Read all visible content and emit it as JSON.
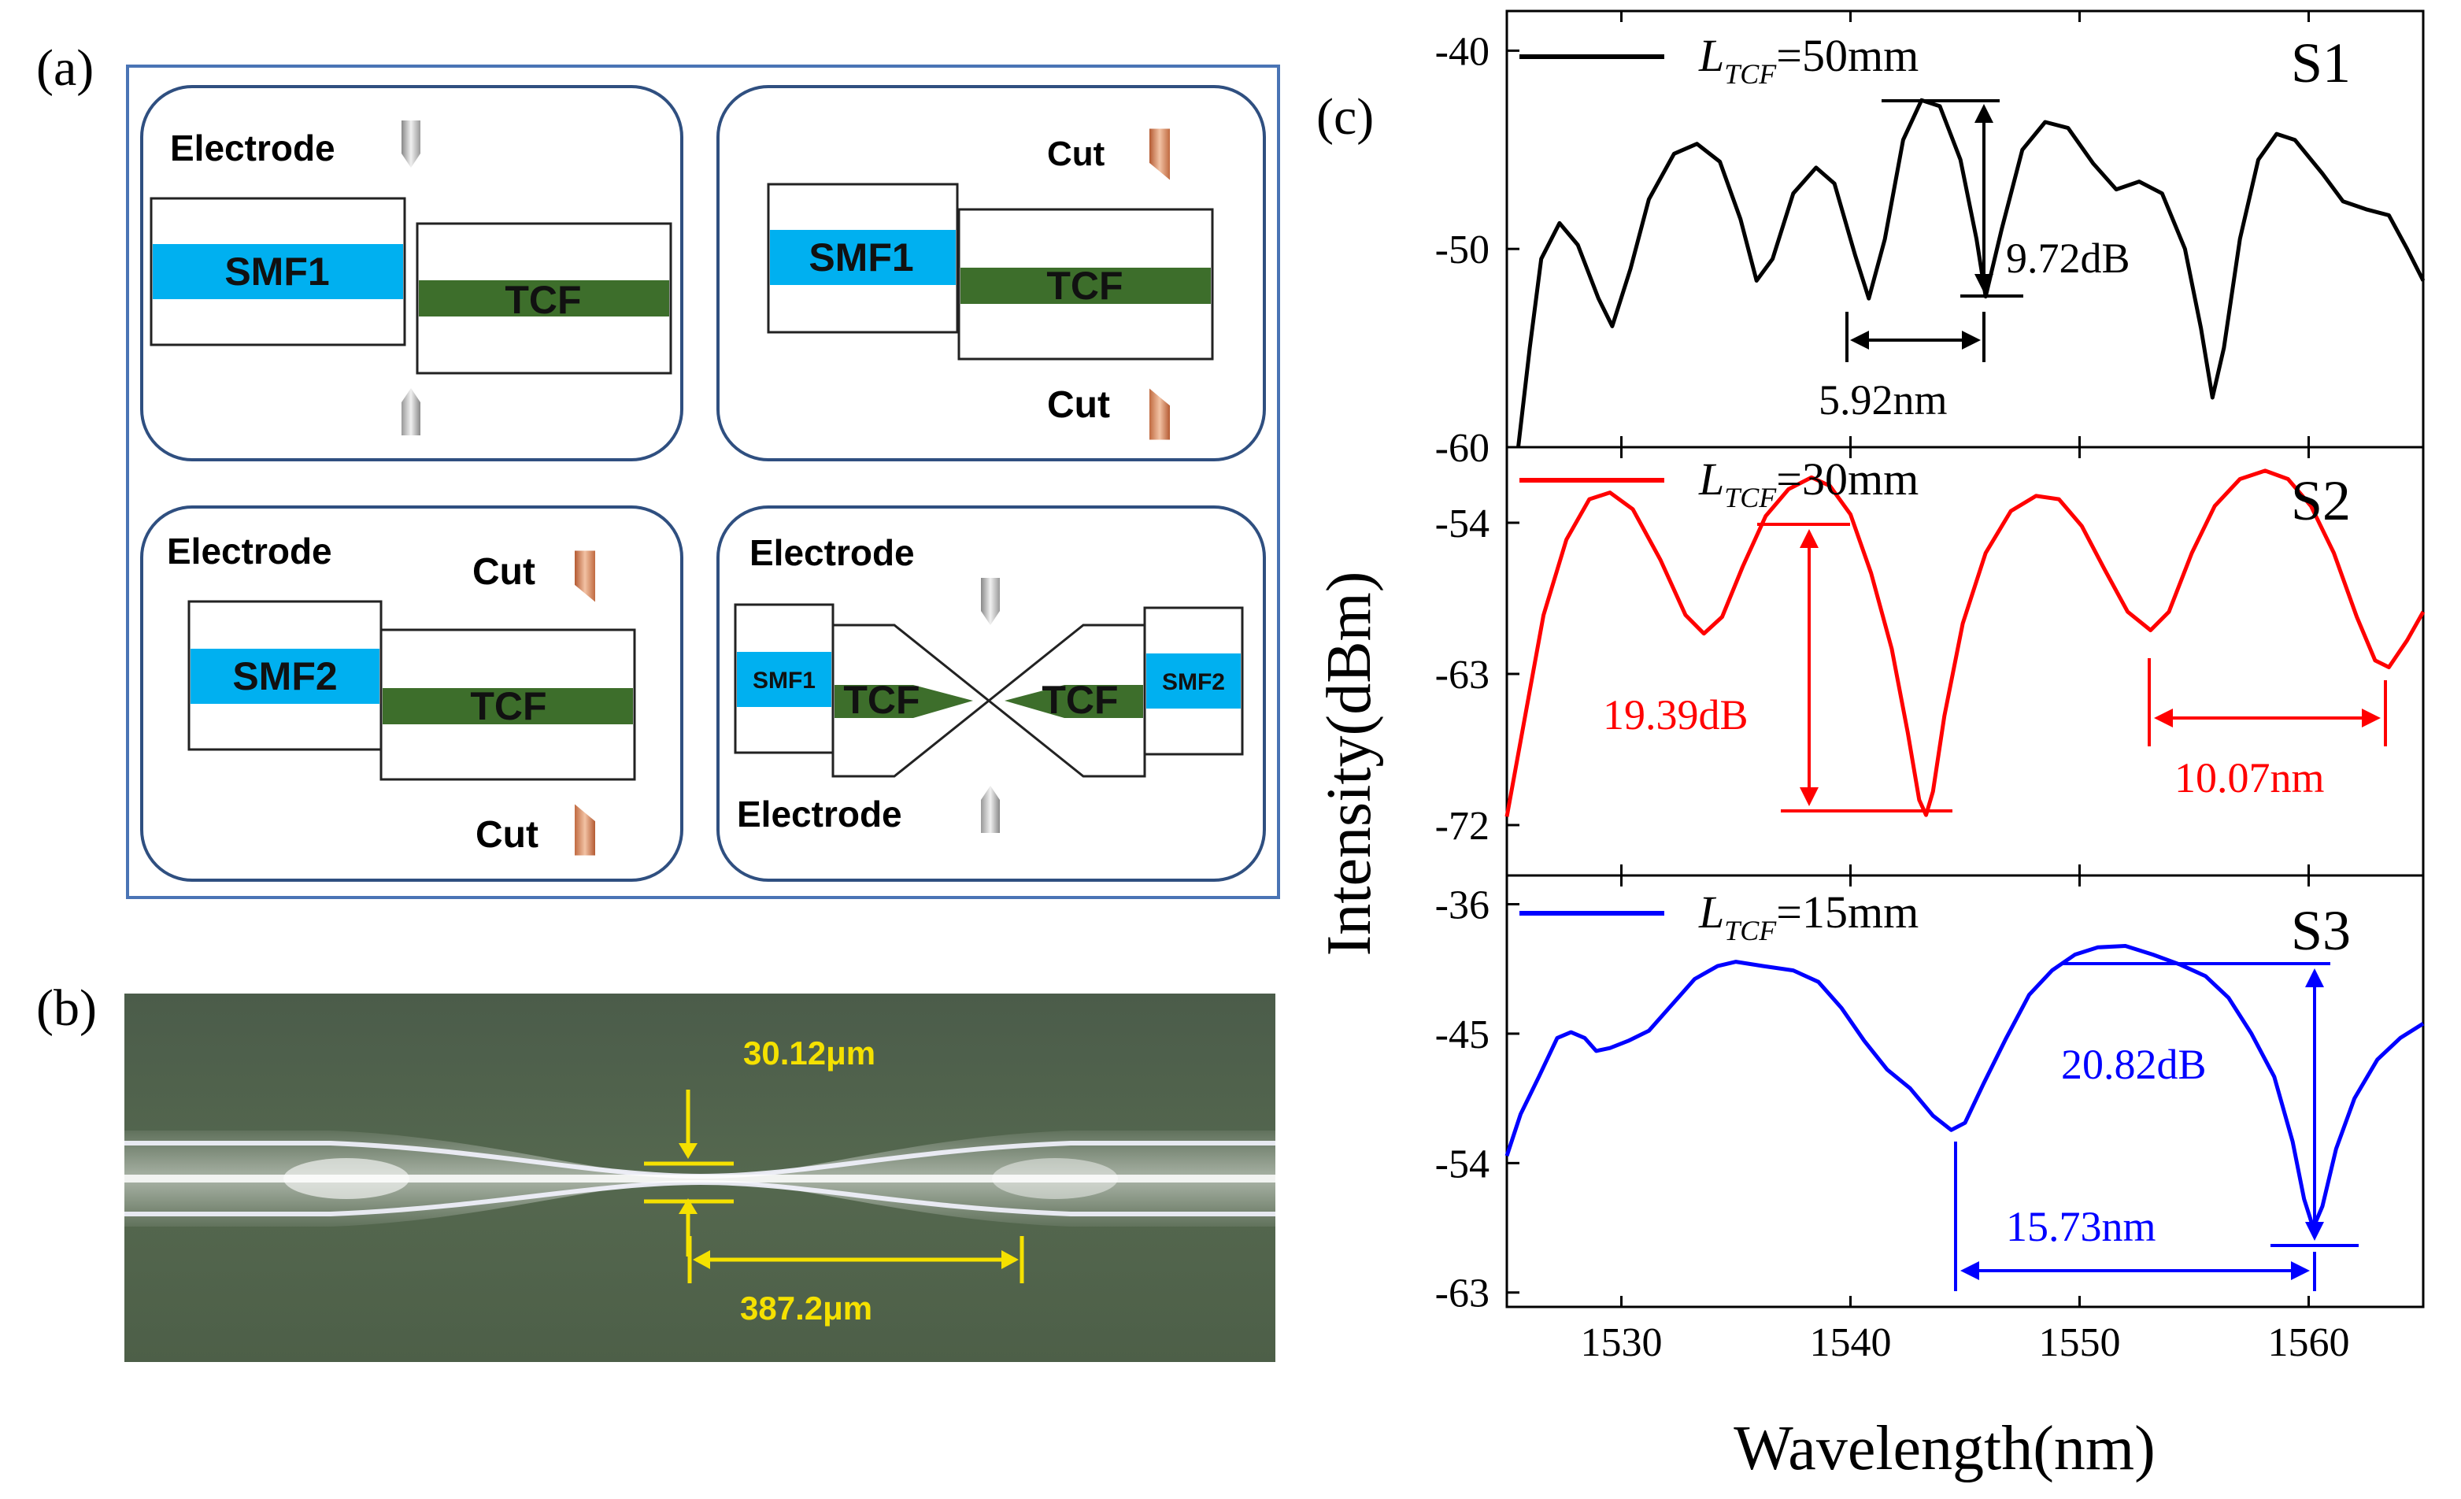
{
  "panel_labels": {
    "a": "(a)",
    "b": "(b)",
    "c": "(c)"
  },
  "colors": {
    "frame": "#4a74b5",
    "box_border": "#2f4f80",
    "smf": "#00b0f0",
    "tcf": "#3d6e2b",
    "electrode": "#b0b0b0",
    "cut": "#c8734a",
    "s1": "#000000",
    "s2": "#ff0000",
    "s3": "#0000ff",
    "annot_b": "#f5e100"
  },
  "panel_a": {
    "box1": {
      "electrode_label": "Electrode",
      "fiber_left": "SMF1",
      "fiber_right": "TCF"
    },
    "box2": {
      "cut_top": "Cut",
      "cut_bottom": "Cut",
      "fiber_left": "SMF1",
      "fiber_right": "TCF"
    },
    "box3": {
      "electrode_label": "Electrode",
      "cut_top": "Cut",
      "cut_bottom": "Cut",
      "fiber_left": "SMF2",
      "fiber_right": "TCF"
    },
    "box4": {
      "electrode_top": "Electrode",
      "electrode_bottom": "Electrode",
      "fiber_left": "SMF1",
      "taper_left": "TCF",
      "taper_right": "TCF",
      "fiber_right": "SMF2"
    }
  },
  "panel_b": {
    "waist_diameter": "30.12μm",
    "waist_length": "387.2μm"
  },
  "chart_data": {
    "type": "line",
    "xlabel": "Wavelength(nm)",
    "ylabel": "Intensity(dBm)",
    "xlim": [
      1525,
      1565
    ],
    "xticks": [
      1530,
      1540,
      1550,
      1560
    ],
    "subplots": [
      {
        "id": "S1",
        "label": "S1",
        "legend_var": "L",
        "legend_sub": "TCF",
        "legend_value": "=50mm",
        "color": "#000000",
        "ylim": [
          -60,
          -38
        ],
        "yticks": [
          -40,
          -50,
          -60
        ],
        "annotations": {
          "depth": "9.72dB",
          "fsr": "5.92nm"
        },
        "points": [
          [
            1525.5,
            -60
          ],
          [
            1526.0,
            -55
          ],
          [
            1526.5,
            -50.5
          ],
          [
            1527.3,
            -48.7
          ],
          [
            1528.1,
            -49.8
          ],
          [
            1529.0,
            -52.5
          ],
          [
            1529.6,
            -53.9
          ],
          [
            1530.4,
            -51
          ],
          [
            1531.2,
            -47.5
          ],
          [
            1532.3,
            -45.2
          ],
          [
            1533.3,
            -44.7
          ],
          [
            1534.3,
            -45.6
          ],
          [
            1535.2,
            -48.5
          ],
          [
            1535.9,
            -51.6
          ],
          [
            1536.6,
            -50.5
          ],
          [
            1537.5,
            -47.2
          ],
          [
            1538.5,
            -45.9
          ],
          [
            1539.3,
            -46.7
          ],
          [
            1540.2,
            -50.3
          ],
          [
            1540.8,
            -52.5
          ],
          [
            1541.5,
            -49.5
          ],
          [
            1542.3,
            -44.5
          ],
          [
            1543.1,
            -42.5
          ],
          [
            1543.9,
            -42.8
          ],
          [
            1544.8,
            -45.5
          ],
          [
            1545.5,
            -49.5
          ],
          [
            1545.9,
            -52.4
          ],
          [
            1546.6,
            -49
          ],
          [
            1547.5,
            -45
          ],
          [
            1548.5,
            -43.6
          ],
          [
            1549.5,
            -43.9
          ],
          [
            1550.6,
            -45.7
          ],
          [
            1551.6,
            -47
          ],
          [
            1552.6,
            -46.6
          ],
          [
            1553.6,
            -47.2
          ],
          [
            1554.6,
            -50
          ],
          [
            1555.3,
            -54
          ],
          [
            1555.8,
            -57.5
          ],
          [
            1556.3,
            -55
          ],
          [
            1557.0,
            -49.5
          ],
          [
            1557.8,
            -45.5
          ],
          [
            1558.6,
            -44.2
          ],
          [
            1559.4,
            -44.5
          ],
          [
            1560.6,
            -46.2
          ],
          [
            1561.5,
            -47.6
          ],
          [
            1562.5,
            -48
          ],
          [
            1563.5,
            -48.3
          ],
          [
            1564.3,
            -50
          ],
          [
            1565.0,
            -51.6
          ]
        ]
      },
      {
        "id": "S2",
        "label": "S2",
        "legend_var": "L",
        "legend_sub": "TCF",
        "legend_value": "=30mm",
        "color": "#ff0000",
        "ylim": [
          -75,
          -49.5
        ],
        "yticks": [
          -54,
          -63,
          -72
        ],
        "annotations": {
          "depth": "19.39dB",
          "fsr": "10.07nm"
        },
        "points": [
          [
            1525.0,
            -71.5
          ],
          [
            1525.8,
            -65.5
          ],
          [
            1526.6,
            -59.5
          ],
          [
            1527.6,
            -55
          ],
          [
            1528.6,
            -52.6
          ],
          [
            1529.5,
            -52.2
          ],
          [
            1530.5,
            -53.2
          ],
          [
            1531.7,
            -56.2
          ],
          [
            1532.8,
            -59.5
          ],
          [
            1533.6,
            -60.6
          ],
          [
            1534.4,
            -59.6
          ],
          [
            1535.3,
            -56.6
          ],
          [
            1536.3,
            -53.6
          ],
          [
            1537.3,
            -52
          ],
          [
            1538.3,
            -51.3
          ],
          [
            1539.1,
            -51.8
          ],
          [
            1540.0,
            -53.5
          ],
          [
            1540.9,
            -57
          ],
          [
            1541.8,
            -61.5
          ],
          [
            1542.5,
            -66.5
          ],
          [
            1543.0,
            -70.5
          ],
          [
            1543.3,
            -71.4
          ],
          [
            1543.6,
            -70
          ],
          [
            1544.1,
            -65.5
          ],
          [
            1544.9,
            -60
          ],
          [
            1545.9,
            -55.8
          ],
          [
            1547.0,
            -53.3
          ],
          [
            1548.1,
            -52.4
          ],
          [
            1549.1,
            -52.6
          ],
          [
            1550.1,
            -54.2
          ],
          [
            1551.1,
            -56.8
          ],
          [
            1552.1,
            -59.3
          ],
          [
            1553.1,
            -60.4
          ],
          [
            1553.9,
            -59.3
          ],
          [
            1554.9,
            -55.8
          ],
          [
            1555.9,
            -53
          ],
          [
            1557.0,
            -51.4
          ],
          [
            1558.1,
            -50.9
          ],
          [
            1559.1,
            -51.4
          ],
          [
            1560.1,
            -53
          ],
          [
            1561.1,
            -55.8
          ],
          [
            1562.1,
            -59.6
          ],
          [
            1562.9,
            -62.2
          ],
          [
            1563.5,
            -62.6
          ],
          [
            1564.3,
            -61
          ],
          [
            1565.0,
            -59.3
          ]
        ]
      },
      {
        "id": "S3",
        "label": "S3",
        "legend_var": "L",
        "legend_sub": "TCF",
        "legend_value": "=15mm",
        "color": "#0000ff",
        "ylim": [
          -64,
          -34
        ],
        "yticks": [
          -36,
          -45,
          -54,
          -63
        ],
        "annotations": {
          "depth": "20.82dB",
          "fsr": "15.73nm"
        },
        "points": [
          [
            1525.0,
            -53.5
          ],
          [
            1525.6,
            -50.6
          ],
          [
            1526.4,
            -48
          ],
          [
            1527.2,
            -45.3
          ],
          [
            1527.8,
            -44.9
          ],
          [
            1528.4,
            -45.3
          ],
          [
            1528.9,
            -46.2
          ],
          [
            1529.5,
            -46
          ],
          [
            1530.3,
            -45.5
          ],
          [
            1531.2,
            -44.8
          ],
          [
            1532.2,
            -43
          ],
          [
            1533.2,
            -41.2
          ],
          [
            1534.2,
            -40.3
          ],
          [
            1535.0,
            -40
          ],
          [
            1536.2,
            -40.3
          ],
          [
            1537.5,
            -40.6
          ],
          [
            1538.6,
            -41.4
          ],
          [
            1539.6,
            -43.2
          ],
          [
            1540.6,
            -45.5
          ],
          [
            1541.6,
            -47.5
          ],
          [
            1542.6,
            -48.8
          ],
          [
            1543.6,
            -50.7
          ],
          [
            1544.4,
            -51.7
          ],
          [
            1545.0,
            -51.2
          ],
          [
            1545.8,
            -48.5
          ],
          [
            1546.8,
            -45.3
          ],
          [
            1547.8,
            -42.3
          ],
          [
            1548.8,
            -40.6
          ],
          [
            1549.8,
            -39.5
          ],
          [
            1550.8,
            -39
          ],
          [
            1552.0,
            -38.9
          ],
          [
            1553.2,
            -39.5
          ],
          [
            1554.4,
            -40.2
          ],
          [
            1555.5,
            -41
          ],
          [
            1556.5,
            -42.5
          ],
          [
            1557.5,
            -45
          ],
          [
            1558.5,
            -48
          ],
          [
            1559.3,
            -52.5
          ],
          [
            1559.8,
            -56.5
          ],
          [
            1560.2,
            -58.5
          ],
          [
            1560.6,
            -57
          ],
          [
            1561.2,
            -53
          ],
          [
            1562.0,
            -49.5
          ],
          [
            1563.0,
            -46.8
          ],
          [
            1564.0,
            -45.3
          ],
          [
            1565.0,
            -44.3
          ]
        ]
      }
    ]
  }
}
